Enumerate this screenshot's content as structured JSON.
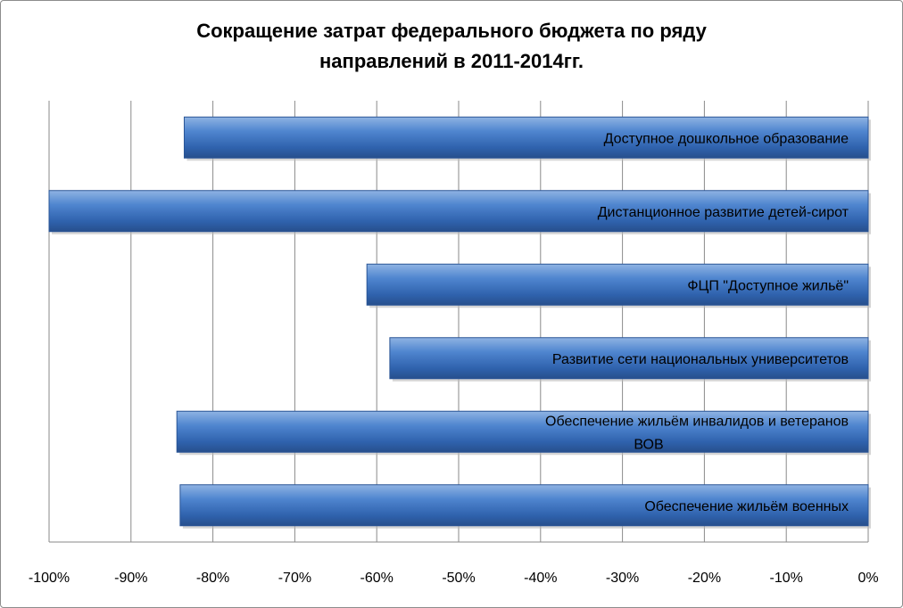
{
  "chart_data": {
    "type": "bar",
    "orientation": "horizontal",
    "title": [
      "Сокращение затрат федерального бюджета по ряду",
      "направлений в 2011-2014гг."
    ],
    "categories": [
      [
        "Доступное дошкольное образование"
      ],
      [
        "Дистанционное развитие детей-сирот"
      ],
      [
        "ФЦП \"Доступное жильё\""
      ],
      [
        "Развитие сети национальных университетов"
      ],
      [
        "Обеспечение жильём инвалидов и ветеранов",
        "ВОВ"
      ],
      [
        "Обеспечение жильём военных"
      ]
    ],
    "values": [
      -83.5,
      -100,
      -61.2,
      -58.4,
      -84.4,
      -84.0
    ],
    "xlim": [
      -100,
      0
    ],
    "x_ticks": [
      "-100%",
      "-90%",
      "-80%",
      "-70%",
      "-60%",
      "-50%",
      "-40%",
      "-30%",
      "-20%",
      "-10%",
      "0%"
    ],
    "x_tick_values": [
      -100,
      -90,
      -80,
      -70,
      -60,
      -50,
      -40,
      -30,
      -20,
      -10,
      0
    ],
    "grid": true,
    "legend": "none",
    "bar_color": "#3a6fbf"
  }
}
